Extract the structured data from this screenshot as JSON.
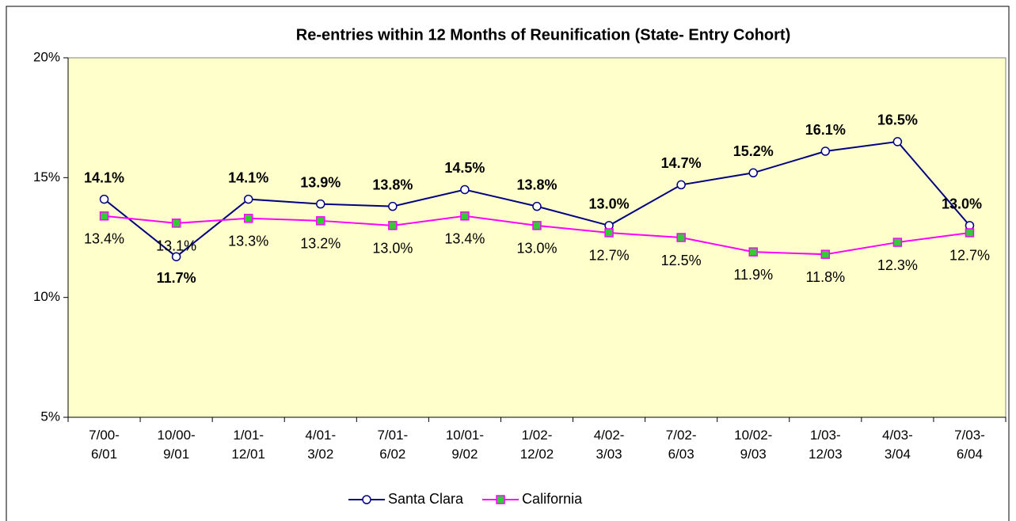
{
  "chart_data": {
    "type": "line",
    "title": "Re-entries within 12 Months of Reunification (State- Entry Cohort)",
    "categories": [
      "7/00-\n6/01",
      "10/00-\n9/01",
      "1/01-\n12/01",
      "4/01-\n3/02",
      "7/01-\n6/02",
      "10/01-\n9/02",
      "1/02-\n12/02",
      "4/02-\n3/03",
      "7/02-\n6/03",
      "10/02-\n9/03",
      "1/03-\n12/03",
      "4/03-\n3/04",
      "7/03-\n6/04"
    ],
    "series": [
      {
        "name": "Santa Clara",
        "color": "#000080",
        "marker_color": "#ffffff",
        "values": [
          14.1,
          11.7,
          14.1,
          13.9,
          13.8,
          14.5,
          13.8,
          13.0,
          14.7,
          15.2,
          16.1,
          16.5,
          13.0
        ],
        "value_labels": [
          "14.1%",
          "11.7%",
          "14.1%",
          "13.9%",
          "13.8%",
          "14.5%",
          "13.8%",
          "13.0%",
          "14.7%",
          "15.2%",
          "16.1%",
          "16.5%",
          "13.0%"
        ]
      },
      {
        "name": "California",
        "color": "#ff00ff",
        "marker_color": "#33cc33",
        "values": [
          13.4,
          13.1,
          13.3,
          13.2,
          13.0,
          13.4,
          13.0,
          12.7,
          12.5,
          11.9,
          11.8,
          12.3,
          12.7
        ],
        "value_labels": [
          "13.4%",
          "13.1%",
          "13.3%",
          "13.2%",
          "13.0%",
          "13.4%",
          "13.0%",
          "12.7%",
          "12.5%",
          "11.9%",
          "11.8%",
          "12.3%",
          "12.7%"
        ]
      }
    ],
    "ylim": [
      5,
      20
    ],
    "yticks": [
      {
        "value": 5,
        "label": "5%"
      },
      {
        "value": 10,
        "label": "10%"
      },
      {
        "value": 15,
        "label": "15%"
      },
      {
        "value": 20,
        "label": "20%"
      }
    ],
    "grid": false
  }
}
